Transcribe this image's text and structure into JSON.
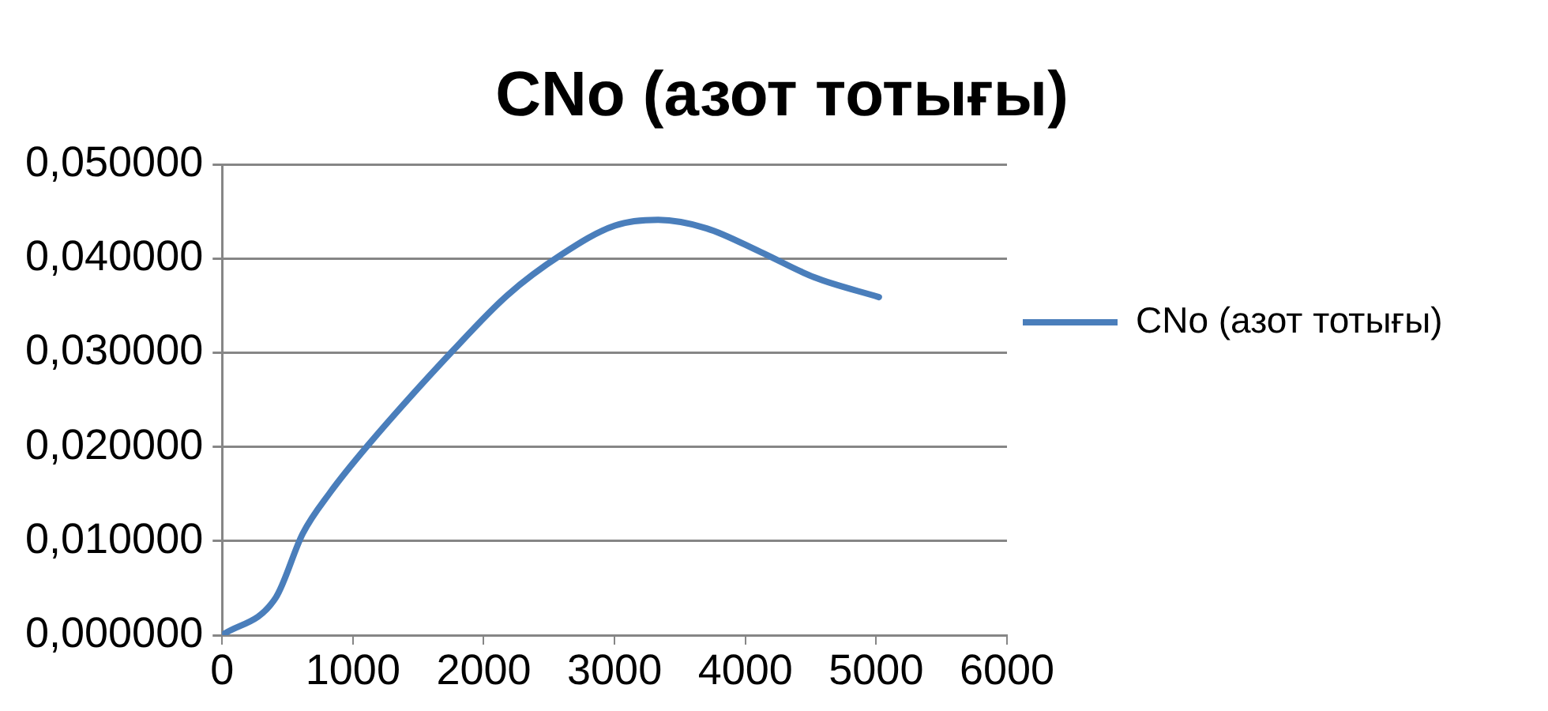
{
  "chart_data": {
    "type": "line",
    "title": "CNo (азот тотығы)",
    "series": [
      {
        "name": "CNo (азот тотығы)",
        "color": "#4a7ebb",
        "x": [
          0,
          411,
          617,
          823,
          1111,
          1770,
          2181,
          2593,
          3004,
          3333,
          3704,
          4115,
          4527,
          5021
        ],
        "values": [
          0,
          0.004,
          0.0108,
          0.0151,
          0.0201,
          0.0303,
          0.0361,
          0.0404,
          0.0435,
          0.0441,
          0.0432,
          0.0407,
          0.038,
          0.0359
        ]
      }
    ],
    "xlim": [
      0,
      6000
    ],
    "xticks": [
      0,
      1000,
      2000,
      3000,
      4000,
      5000,
      6000
    ],
    "ylim": [
      0,
      0.05
    ],
    "yticks": [
      {
        "value": 0,
        "label": "0,000000"
      },
      {
        "value": 0.01,
        "label": "0,010000"
      },
      {
        "value": 0.02,
        "label": "0,020000"
      },
      {
        "value": 0.03,
        "label": "0,030000"
      },
      {
        "value": 0.04,
        "label": "0,040000"
      },
      {
        "value": 0.05,
        "label": "0,050000"
      }
    ],
    "grid": "y",
    "legend": "right",
    "marker": "none",
    "line_style": "solid"
  }
}
